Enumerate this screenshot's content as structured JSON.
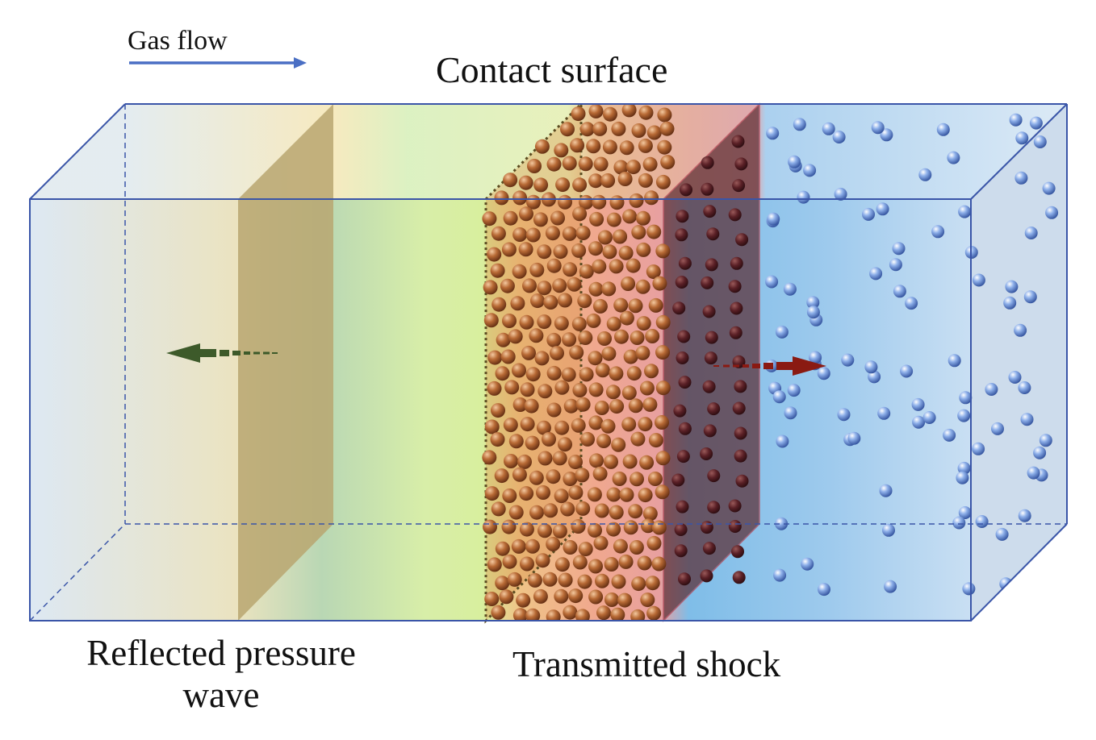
{
  "labels": {
    "gas_flow": "Gas flow",
    "contact_surface": "Contact surface",
    "reflected_pressure_wave": "Reflected pressure wave",
    "transmitted_shock": "Transmitted shock"
  },
  "colors": {
    "tube_outline": "#3a55a8",
    "gas_flow_arrow": "#4a6fc4",
    "reflected_arrow": "#3d5a2a",
    "transmitted_arrow": "#8a1a12",
    "reflected_wave_plane": "#b8a670",
    "transmitted_shock_plane": "#5a2a30",
    "particle_brown": "#b5602a",
    "particle_blue": "#5b86d6"
  },
  "icons": {
    "gas_flow": "arrow-right-icon",
    "reflected": "dashed-arrow-left-icon",
    "transmitted": "dashed-arrow-right-icon"
  }
}
